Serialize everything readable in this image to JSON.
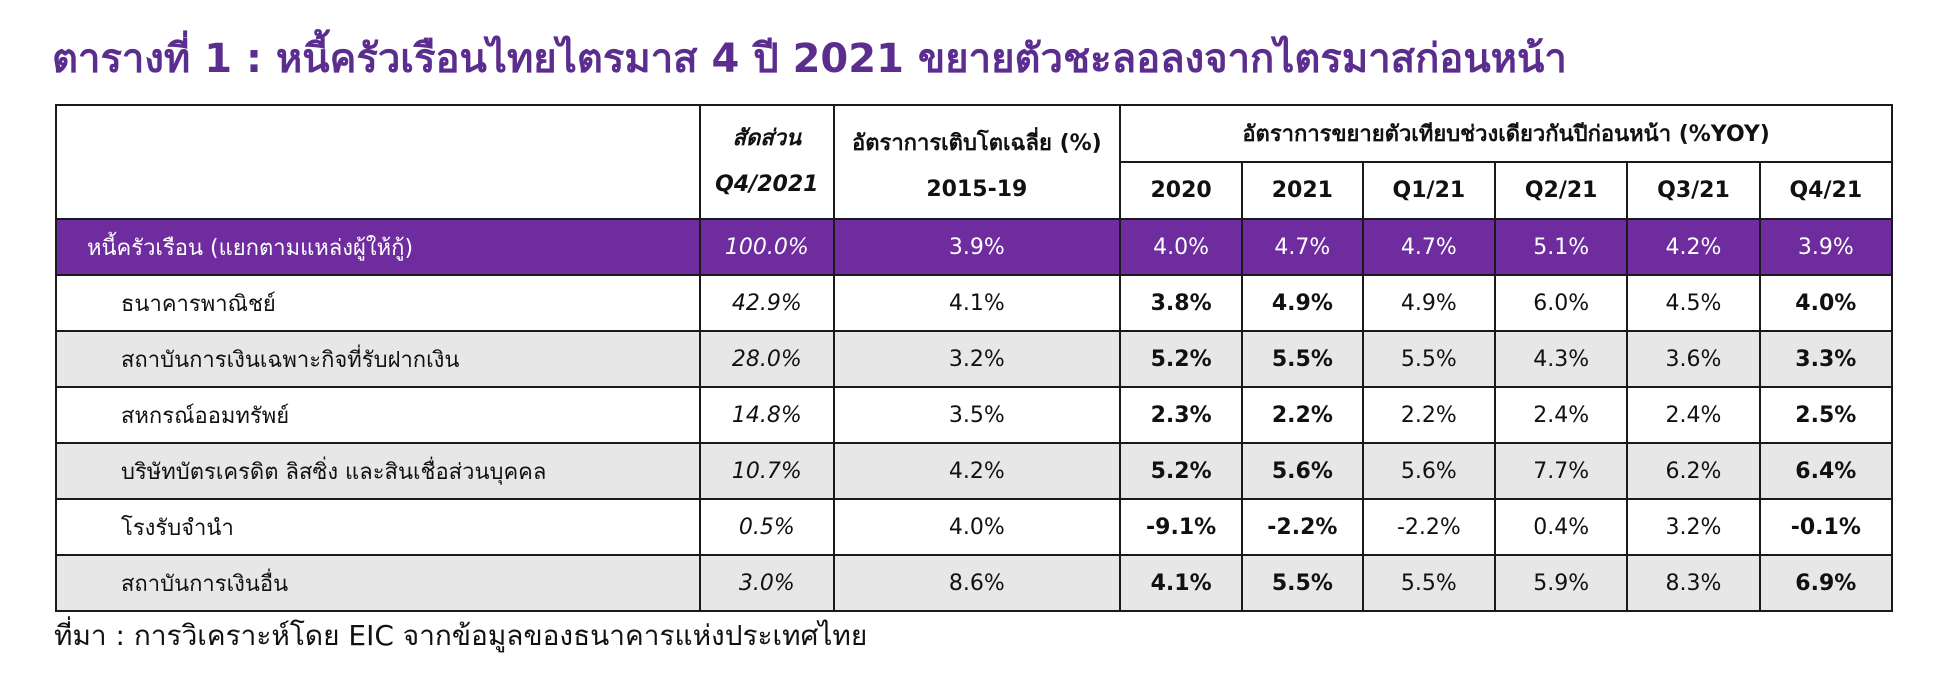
{
  "title": "ตารางที่ 1 : หนี้ครัวเรือนไทยไตรมาส 4 ปี 2021 ขยายตัวชะลอลงจากไตรมาสก่อนหน้า",
  "table": {
    "header": {
      "share_line1": "สัดส่วน",
      "share_line2": "Q4/2021",
      "growth_line1": "อัตราการเติบโตเฉลี่ย (%)",
      "growth_line2": "2015-19",
      "yoy_group": "อัตราการขยายตัวเทียบช่วงเดียวกันปีก่อนหน้า (%YOY)",
      "periods": [
        "2020",
        "2021",
        "Q1/21",
        "Q2/21",
        "Q3/21",
        "Q4/21"
      ]
    },
    "total": {
      "label": "หนี้ครัวเรือน (แยกตามแหล่งผู้ให้กู้)",
      "share": "100.0%",
      "growth": "3.9%",
      "values": [
        "4.0%",
        "4.7%",
        "4.7%",
        "5.1%",
        "4.2%",
        "3.9%"
      ]
    },
    "rows": [
      {
        "label": "ธนาคารพาณิชย์",
        "share": "42.9%",
        "growth": "4.1%",
        "values": [
          "3.8%",
          "4.9%",
          "4.9%",
          "6.0%",
          "4.5%",
          "4.0%"
        ]
      },
      {
        "label": "สถาบันการเงินเฉพาะกิจที่รับฝากเงิน",
        "share": "28.0%",
        "growth": "3.2%",
        "values": [
          "5.2%",
          "5.5%",
          "5.5%",
          "4.3%",
          "3.6%",
          "3.3%"
        ]
      },
      {
        "label": "สหกรณ์ออมทรัพย์",
        "share": "14.8%",
        "growth": "3.5%",
        "values": [
          "2.3%",
          "2.2%",
          "2.2%",
          "2.4%",
          "2.4%",
          "2.5%"
        ]
      },
      {
        "label": "บริษัทบัตรเครดิต ลิสซิ่ง และสินเชื่อส่วนบุคคล",
        "share": "10.7%",
        "growth": "4.2%",
        "values": [
          "5.2%",
          "5.6%",
          "5.6%",
          "7.7%",
          "6.2%",
          "6.4%"
        ]
      },
      {
        "label": "โรงรับจำนำ",
        "share": "0.5%",
        "growth": "4.0%",
        "values": [
          "-9.1%",
          "-2.2%",
          "-2.2%",
          "0.4%",
          "3.2%",
          "-0.1%"
        ]
      },
      {
        "label": "สถาบันการเงินอื่น",
        "share": "3.0%",
        "growth": "8.6%",
        "values": [
          "4.1%",
          "5.5%",
          "5.5%",
          "5.9%",
          "8.3%",
          "6.9%"
        ]
      }
    ]
  },
  "source": "ที่มา : การวิเคราะห์โดย EIC จากข้อมูลของธนาคารแห่งประเทศไทย",
  "colors": {
    "title": "#5b2d8e",
    "total_row_bg": "#6e2c9e",
    "alt_row_bg": "#e7e7e8"
  }
}
